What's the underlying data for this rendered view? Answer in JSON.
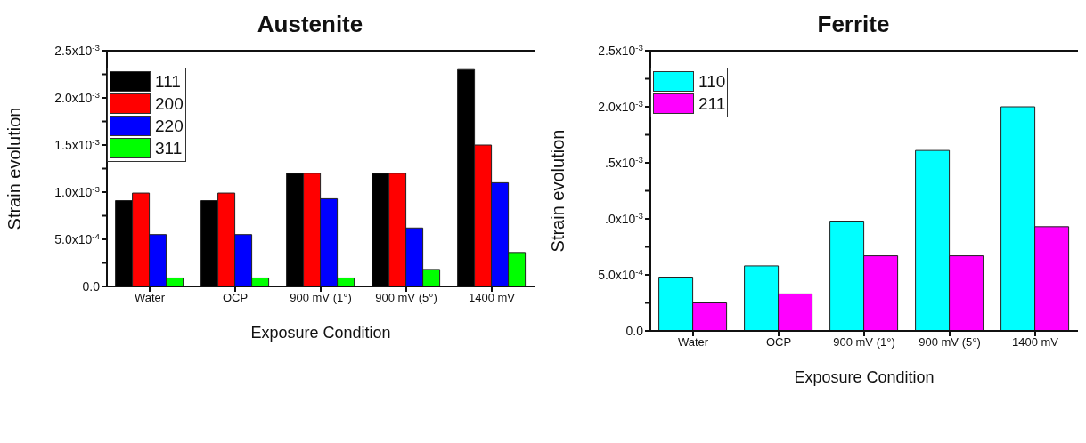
{
  "chart_data": [
    {
      "type": "bar",
      "title": "Austenite",
      "xlabel": "Exposure Condition",
      "ylabel": "Strain evolution",
      "categories": [
        "Water",
        "OCP",
        "900 mV (1°)",
        "900 mV (5°)",
        "1400 mV"
      ],
      "series": [
        {
          "name": "111",
          "color": "#000000",
          "values": [
            0.00091,
            0.00091,
            0.0012,
            0.0012,
            0.0023
          ]
        },
        {
          "name": "200",
          "color": "#ff0000",
          "values": [
            0.00099,
            0.00099,
            0.0012,
            0.0012,
            0.0015
          ]
        },
        {
          "name": "220",
          "color": "#0000ff",
          "values": [
            0.00055,
            0.00055,
            0.00093,
            0.00062,
            0.0011
          ]
        },
        {
          "name": "311",
          "color": "#00ff00",
          "values": [
            9e-05,
            9e-05,
            9e-05,
            0.00018,
            0.00036
          ]
        }
      ],
      "ylim": [
        0,
        0.0025
      ],
      "yticks": [
        {
          "value": 0,
          "label": "0.0"
        },
        {
          "value": 0.00025,
          "label": null
        },
        {
          "value": 0.0005,
          "label": "5.0x10$^{-4}$"
        },
        {
          "value": 0.00075,
          "label": null
        },
        {
          "value": 0.001,
          "label": "1.0x10$^{-3}$"
        },
        {
          "value": 0.00125,
          "label": null
        },
        {
          "value": 0.0015,
          "label": "1.5x10$^{-3}$"
        },
        {
          "value": 0.00175,
          "label": null
        },
        {
          "value": 0.002,
          "label": "2.0x10$^{-3}$"
        },
        {
          "value": 0.00225,
          "label": null
        },
        {
          "value": 0.0025,
          "label": "2.5x10$^{-3}$"
        }
      ],
      "grid": false,
      "legend": "top left"
    },
    {
      "type": "bar",
      "title": "Ferrite",
      "xlabel": "Exposure Condition",
      "ylabel": "Strain evolution",
      "categories": [
        "Water",
        "OCP",
        "900 mV (1°)",
        "900 mV (5°)",
        "1400 mV"
      ],
      "series": [
        {
          "name": "110",
          "color": "#00ffff",
          "values": [
            0.00048,
            0.00058,
            0.00098,
            0.00161,
            0.002
          ]
        },
        {
          "name": "211",
          "color": "#ff00ff",
          "values": [
            0.00025,
            0.00033,
            0.00067,
            0.00067,
            0.00093
          ]
        }
      ],
      "ylim": [
        0,
        0.0025
      ],
      "yticks": [
        {
          "value": 0,
          "label": "0.0"
        },
        {
          "value": 0.00025,
          "label": null
        },
        {
          "value": 0.0005,
          "label": "5.0x10$^{-4}$"
        },
        {
          "value": 0.00075,
          "label": null
        },
        {
          "value": 0.001,
          "label": ".0x10$^{-3}$"
        },
        {
          "value": 0.00125,
          "label": null
        },
        {
          "value": 0.0015,
          "label": ".5x10$^{-3}$"
        },
        {
          "value": 0.00175,
          "label": null
        },
        {
          "value": 0.002,
          "label": "2.0x10$^{-3}$"
        },
        {
          "value": 0.00225,
          "label": null
        },
        {
          "value": 0.0025,
          "label": "2.5x10$^{-3}$"
        }
      ],
      "grid": false,
      "legend": "top left"
    }
  ]
}
